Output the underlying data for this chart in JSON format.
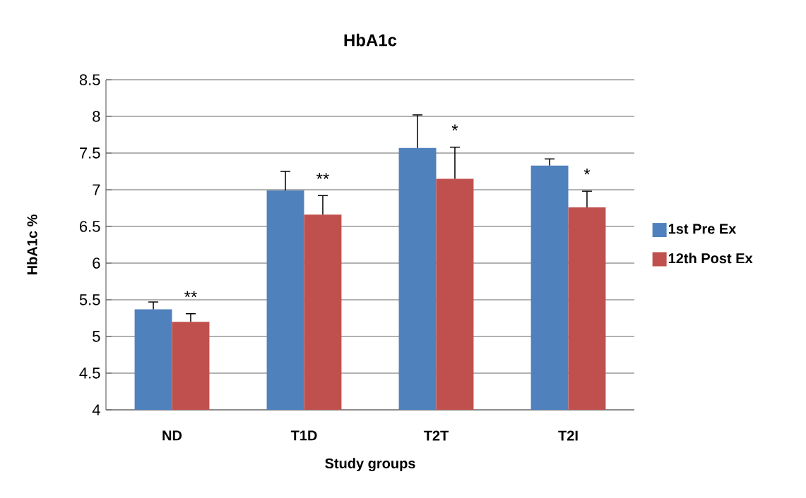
{
  "chart_data": {
    "type": "bar",
    "title": "HbA1c",
    "xlabel": "Study groups",
    "ylabel": "HbA1c %",
    "categories": [
      "ND",
      "T1D",
      "T2T",
      "T2I"
    ],
    "series": [
      {
        "name": "1st Pre Ex",
        "color": "#4f81bd",
        "values": [
          5.37,
          6.99,
          7.57,
          7.33
        ],
        "errors": [
          0.1,
          0.26,
          0.45,
          0.09
        ]
      },
      {
        "name": "12th Post Ex",
        "color": "#c0504d",
        "values": [
          5.2,
          6.66,
          7.15,
          6.76
        ],
        "errors": [
          0.11,
          0.26,
          0.43,
          0.22
        ]
      }
    ],
    "ylim": [
      4,
      8.5
    ],
    "yticks": [
      4,
      4.5,
      5,
      5.5,
      6,
      6.5,
      7,
      7.5,
      8,
      8.5
    ],
    "grid": "y",
    "legend": "right",
    "annotations": [
      "**",
      "**",
      "*",
      "*"
    ]
  }
}
